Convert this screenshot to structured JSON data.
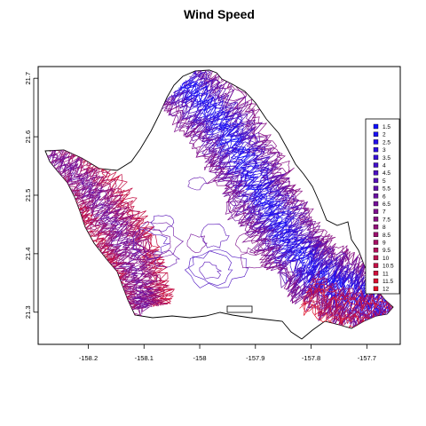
{
  "chart_data": {
    "type": "contour",
    "title": "Wind Speed",
    "xlabel": "",
    "ylabel": "",
    "xlim": [
      -158.29,
      -157.64
    ],
    "ylim": [
      21.245,
      21.72
    ],
    "x_ticks": [
      "-158.2",
      "-158.1",
      "-158",
      "-157.9",
      "-157.8",
      "-157.7"
    ],
    "y_ticks": [
      "21.3",
      "21.4",
      "21.5",
      "21.6",
      "21.7"
    ],
    "legend_position": "right",
    "legend": {
      "levels": [
        "1.5",
        "2",
        "2.5",
        "3",
        "3.5",
        "4",
        "4.5",
        "5",
        "5.5",
        "6",
        "6.5",
        "7",
        "7.5",
        "8",
        "8.5",
        "9",
        "9.5",
        "10",
        "10.5",
        "11",
        "11.5",
        "12"
      ],
      "colors": [
        "#1010ff",
        "#1a10f5",
        "#2410ea",
        "#2e10e0",
        "#3810d6",
        "#4210cb",
        "#4c10c1",
        "#5610b7",
        "#6010ac",
        "#6a10a2",
        "#741098",
        "#7e108d",
        "#881083",
        "#921079",
        "#9c106e",
        "#a61064",
        "#b0105a",
        "#ba104f",
        "#c41045",
        "#ce103b",
        "#d81030",
        "#e21026"
      ]
    }
  }
}
